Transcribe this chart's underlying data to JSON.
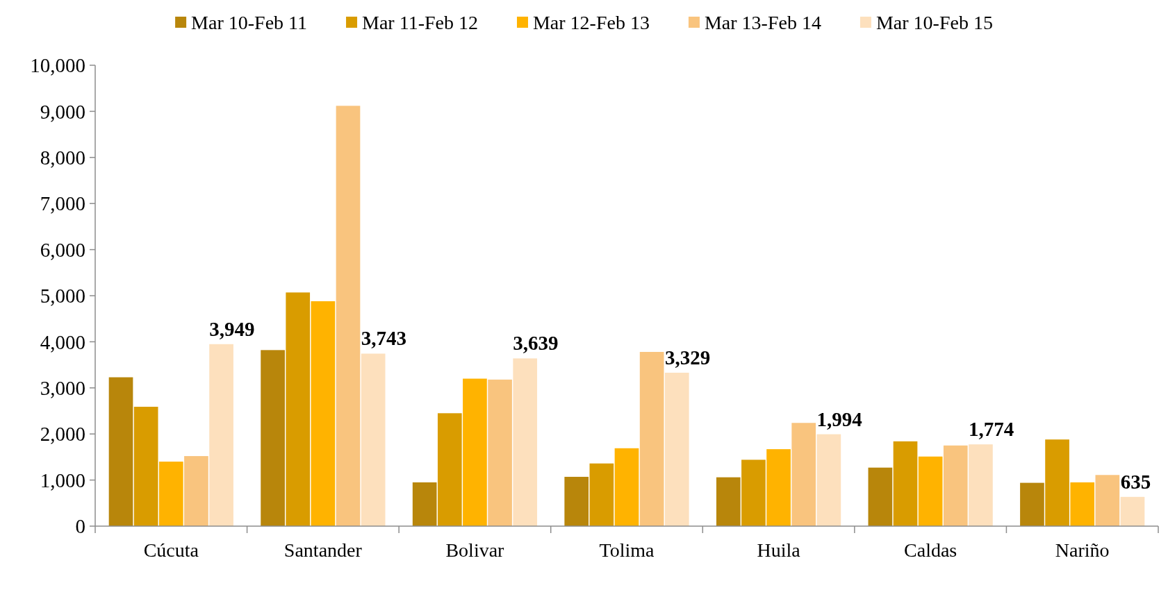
{
  "chart_data": {
    "type": "bar",
    "categories": [
      "Cúcuta",
      "Santander",
      "Bolivar",
      "Tolima",
      "Huila",
      "Caldas",
      "Nariño"
    ],
    "series": [
      {
        "name": "Mar 10-Feb 11",
        "color": "#b8860b",
        "values": [
          3230,
          3820,
          950,
          1070,
          1060,
          1270,
          940
        ]
      },
      {
        "name": "Mar 11-Feb 12",
        "color": "#d99c00",
        "values": [
          2590,
          5070,
          2450,
          1360,
          1440,
          1840,
          1880
        ]
      },
      {
        "name": "Mar 12-Feb 13",
        "color": "#ffb300",
        "values": [
          1400,
          4880,
          3200,
          1690,
          1670,
          1510,
          950
        ]
      },
      {
        "name": "Mar 13-Feb 14",
        "color": "#f9c47e",
        "values": [
          1520,
          9120,
          3180,
          3780,
          2240,
          1750,
          1110
        ]
      },
      {
        "name": "Mar 10-Feb 15",
        "color": "#fde0bd",
        "values": [
          3949,
          3743,
          3639,
          3329,
          1994,
          1774,
          635
        ],
        "value_labels": [
          "3,949",
          "3,743",
          "3,639",
          "3,329",
          "1,994",
          "1,774",
          "635"
        ]
      }
    ],
    "ylim": [
      0,
      10000
    ],
    "yticks": [
      0,
      {
        "value": 1000,
        "label": "1,000"
      },
      {
        "value": 2000,
        "label": "2,000"
      },
      {
        "value": 3000,
        "label": "3,000"
      },
      {
        "value": 4000,
        "label": "4,000"
      },
      {
        "value": 5000,
        "label": "5,000"
      },
      {
        "value": 6000,
        "label": "6,000"
      },
      {
        "value": 7000,
        "label": "7,000"
      },
      {
        "value": 8000,
        "label": "8,000"
      },
      {
        "value": 9000,
        "label": "9,000"
      },
      {
        "value": 10000,
        "label": "10,000"
      }
    ],
    "legend": "top"
  }
}
